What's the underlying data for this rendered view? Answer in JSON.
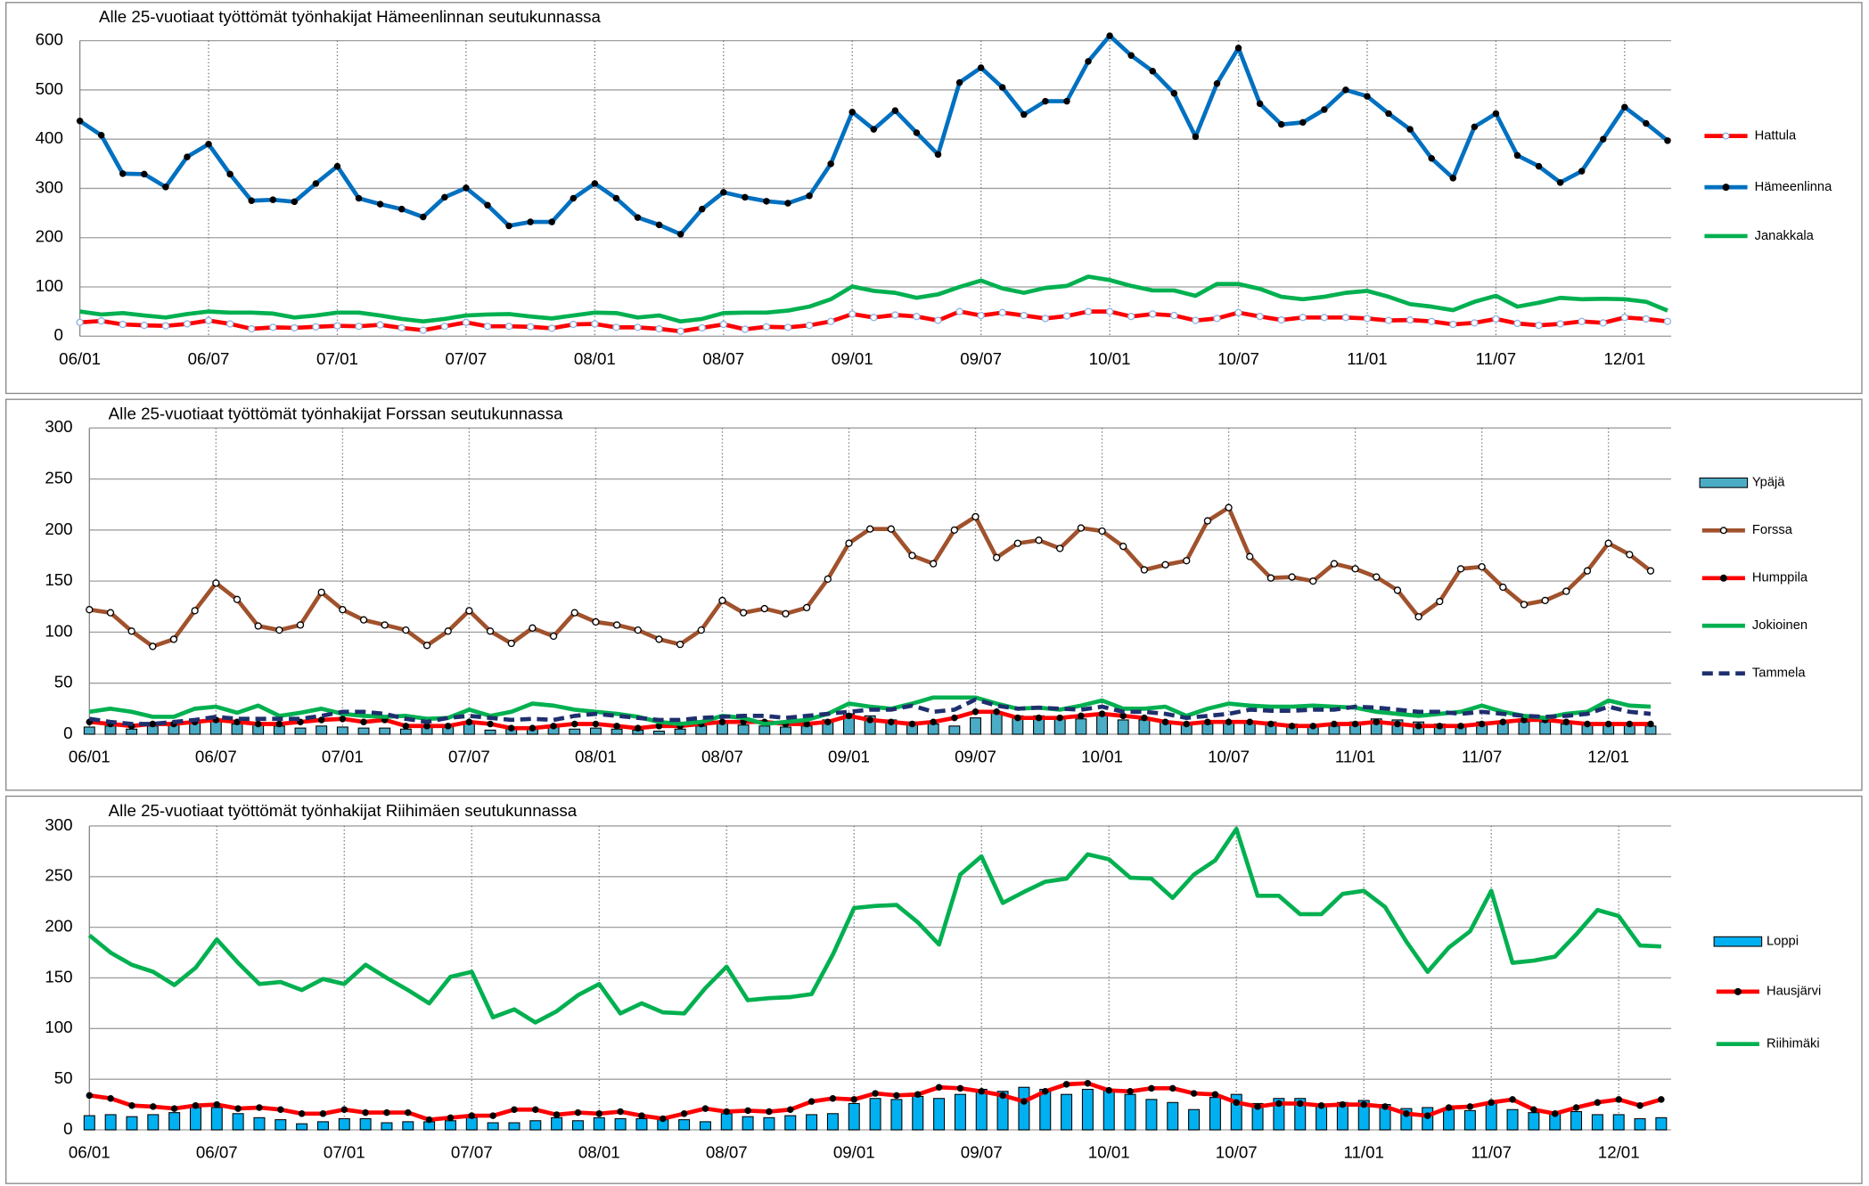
{
  "chart_data": [
    {
      "type": "line",
      "title": "Alle 25-vuotiaat työttömät työnhakijat Hämeenlinnan seutukunnassa",
      "categories": [
        "06/01",
        null,
        null,
        null,
        null,
        null,
        "06/07",
        null,
        null,
        null,
        null,
        null,
        "07/01",
        null,
        null,
        null,
        null,
        null,
        "07/07",
        null,
        null,
        null,
        null,
        null,
        "08/01",
        null,
        null,
        null,
        null,
        null,
        "08/07",
        null,
        null,
        null,
        null,
        null,
        "09/01",
        null,
        null,
        null,
        null,
        null,
        "09/07",
        null,
        null,
        null,
        null,
        null,
        "10/01",
        null,
        null,
        null,
        null,
        null,
        "10/07",
        null,
        null,
        null,
        null,
        null,
        "11/01",
        null,
        null,
        null,
        null,
        null,
        "11/07",
        null,
        null,
        null,
        null,
        null,
        "12/01",
        null,
        null
      ],
      "ylim": [
        0,
        600
      ],
      "yticks": [
        0,
        100,
        200,
        300,
        400,
        500,
        600
      ],
      "grid": true,
      "series": [
        {
          "name": "Hattula",
          "color": "#ff0000",
          "marker": "hollow",
          "marker_color": "#8eb4e3",
          "mark": "line",
          "values": [
            28,
            31,
            24,
            22,
            21,
            25,
            32,
            25,
            15,
            18,
            17,
            19,
            21,
            20,
            23,
            17,
            12,
            20,
            28,
            20,
            20,
            19,
            16,
            24,
            25,
            18,
            18,
            15,
            10,
            17,
            24,
            14,
            19,
            18,
            22,
            30,
            45,
            38,
            43,
            40,
            32,
            50,
            42,
            48,
            42,
            36,
            41,
            50,
            50,
            40,
            45,
            42,
            32,
            36,
            48,
            40,
            33,
            38,
            38,
            38,
            36,
            32,
            33,
            30,
            24,
            27,
            35,
            26,
            22,
            25,
            30,
            27,
            38,
            35,
            30
          ]
        },
        {
          "name": "Hämeenlinna",
          "color": "#0070c0",
          "marker": "dot",
          "marker_color": "#000000",
          "mark": "line",
          "values": [
            437,
            408,
            330,
            329,
            303,
            364,
            390,
            329,
            275,
            277,
            273,
            310,
            345,
            280,
            268,
            258,
            242,
            282,
            301,
            266,
            224,
            232,
            232,
            280,
            310,
            280,
            241,
            226,
            207,
            258,
            292,
            282,
            274,
            270,
            285,
            350,
            455,
            420,
            458,
            413,
            369,
            515,
            545,
            505,
            450,
            477,
            477,
            558,
            610,
            570,
            538,
            493,
            405,
            513,
            585,
            472,
            430,
            434,
            460,
            500,
            487,
            452,
            420,
            361,
            321,
            425,
            452,
            367,
            345,
            312,
            335,
            400,
            465,
            432,
            397
          ]
        },
        {
          "name": "Janakkala",
          "color": "#00b050",
          "mark": "line",
          "values": [
            50,
            44,
            47,
            42,
            38,
            45,
            50,
            48,
            48,
            46,
            38,
            42,
            48,
            48,
            42,
            35,
            30,
            35,
            42,
            44,
            45,
            40,
            36,
            42,
            48,
            47,
            38,
            42,
            30,
            35,
            47,
            48,
            48,
            52,
            60,
            75,
            101,
            92,
            88,
            78,
            85,
            100,
            113,
            97,
            88,
            98,
            102,
            121,
            114,
            102,
            93,
            93,
            82,
            106,
            106,
            96,
            80,
            75,
            80,
            88,
            92,
            80,
            65,
            60,
            53,
            70,
            82,
            60,
            68,
            78,
            75,
            76,
            75,
            70,
            52
          ]
        }
      ]
    },
    {
      "type": "line",
      "title": "Alle 25-vuotiaat työttömät työnhakijat Forssan seutukunnassa",
      "categories": [
        "06/01",
        null,
        null,
        null,
        null,
        null,
        "06/07",
        null,
        null,
        null,
        null,
        null,
        "07/01",
        null,
        null,
        null,
        null,
        null,
        "07/07",
        null,
        null,
        null,
        null,
        null,
        "08/01",
        null,
        null,
        null,
        null,
        null,
        "08/07",
        null,
        null,
        null,
        null,
        null,
        "09/01",
        null,
        null,
        null,
        null,
        null,
        "09/07",
        null,
        null,
        null,
        null,
        null,
        "10/01",
        null,
        null,
        null,
        null,
        null,
        "10/07",
        null,
        null,
        null,
        null,
        null,
        "11/01",
        null,
        null,
        null,
        null,
        null,
        "11/07",
        null,
        null,
        null,
        null,
        null,
        "12/01",
        null,
        null
      ],
      "ylim": [
        0,
        300
      ],
      "yticks": [
        0,
        50,
        100,
        150,
        200,
        250,
        300
      ],
      "grid": true,
      "series": [
        {
          "name": "Ypäjä",
          "color": "#4bacc6",
          "mark": "bar",
          "values": [
            7,
            8,
            5,
            8,
            10,
            12,
            14,
            10,
            10,
            8,
            6,
            8,
            7,
            6,
            6,
            5,
            7,
            8,
            10,
            4,
            5,
            6,
            7,
            5,
            6,
            5,
            4,
            3,
            5,
            8,
            12,
            9,
            8,
            7,
            8,
            14,
            20,
            18,
            14,
            12,
            10,
            8,
            16,
            22,
            18,
            18,
            16,
            15,
            20,
            14,
            14,
            12,
            10,
            10,
            12,
            12,
            12,
            10,
            8,
            8,
            12,
            15,
            14,
            12,
            10,
            8,
            12,
            13,
            12,
            12,
            10,
            9,
            10,
            10,
            8
          ]
        },
        {
          "name": "Forssa",
          "color": "#a0522d",
          "marker": "hollow",
          "marker_color": "#000000",
          "mark": "line",
          "values": [
            122,
            119,
            101,
            86,
            93,
            121,
            148,
            132,
            106,
            102,
            107,
            139,
            122,
            112,
            107,
            102,
            87,
            101,
            121,
            101,
            89,
            104,
            96,
            119,
            110,
            107,
            102,
            93,
            88,
            102,
            131,
            119,
            123,
            118,
            124,
            152,
            187,
            201,
            201,
            175,
            167,
            200,
            213,
            173,
            187,
            190,
            182,
            202,
            199,
            184,
            161,
            166,
            170,
            209,
            222,
            174,
            153,
            154,
            150,
            167,
            162,
            154,
            141,
            115,
            130,
            162,
            164,
            144,
            127,
            131,
            140,
            160,
            187,
            176,
            160
          ]
        },
        {
          "name": "Humppila",
          "color": "#ff0000",
          "marker": "dot",
          "marker_color": "#000000",
          "mark": "line",
          "values": [
            12,
            10,
            8,
            10,
            10,
            12,
            14,
            12,
            10,
            10,
            12,
            14,
            15,
            12,
            14,
            8,
            8,
            8,
            12,
            10,
            6,
            6,
            8,
            10,
            10,
            8,
            6,
            8,
            8,
            10,
            12,
            12,
            12,
            10,
            10,
            12,
            18,
            14,
            12,
            10,
            12,
            16,
            22,
            22,
            16,
            16,
            16,
            18,
            20,
            18,
            16,
            12,
            10,
            12,
            12,
            12,
            10,
            8,
            8,
            10,
            10,
            12,
            10,
            8,
            8,
            8,
            10,
            12,
            14,
            14,
            12,
            10,
            10,
            10,
            10
          ]
        },
        {
          "name": "Jokioinen",
          "color": "#00b050",
          "mark": "line",
          "values": [
            22,
            25,
            22,
            17,
            17,
            25,
            27,
            21,
            28,
            18,
            21,
            25,
            20,
            18,
            17,
            18,
            15,
            16,
            24,
            18,
            22,
            30,
            28,
            24,
            22,
            20,
            17,
            12,
            10,
            12,
            18,
            16,
            10,
            12,
            14,
            20,
            30,
            27,
            25,
            30,
            36,
            36,
            36,
            30,
            25,
            26,
            24,
            28,
            33,
            25,
            25,
            27,
            18,
            25,
            30,
            28,
            27,
            27,
            28,
            27,
            26,
            22,
            20,
            18,
            20,
            22,
            28,
            22,
            18,
            16,
            20,
            22,
            33,
            28,
            27
          ]
        },
        {
          "name": "Tammela",
          "color": "#1f2f6e",
          "dash": true,
          "mark": "line",
          "values": [
            15,
            12,
            10,
            10,
            12,
            14,
            17,
            15,
            15,
            15,
            15,
            18,
            22,
            22,
            20,
            15,
            12,
            16,
            18,
            16,
            14,
            15,
            14,
            18,
            20,
            18,
            16,
            14,
            14,
            16,
            17,
            18,
            18,
            16,
            18,
            20,
            22,
            24,
            24,
            28,
            22,
            24,
            34,
            28,
            25,
            26,
            25,
            24,
            27,
            22,
            22,
            20,
            16,
            18,
            20,
            24,
            23,
            23,
            24,
            24,
            27,
            26,
            24,
            22,
            22,
            20,
            22,
            20,
            18,
            17,
            18,
            20,
            27,
            22,
            20
          ]
        }
      ]
    },
    {
      "type": "line",
      "title": "Alle 25-vuotiaat työttömät työnhakijat Riihimäen seutukunnassa",
      "categories": [
        "06/01",
        null,
        null,
        null,
        null,
        null,
        "06/07",
        null,
        null,
        null,
        null,
        null,
        "07/01",
        null,
        null,
        null,
        null,
        null,
        "07/07",
        null,
        null,
        null,
        null,
        null,
        "08/01",
        null,
        null,
        null,
        null,
        null,
        "08/07",
        null,
        null,
        null,
        null,
        null,
        "09/01",
        null,
        null,
        null,
        null,
        null,
        "09/07",
        null,
        null,
        null,
        null,
        null,
        "10/01",
        null,
        null,
        null,
        null,
        null,
        "10/07",
        null,
        null,
        null,
        null,
        null,
        "11/01",
        null,
        null,
        null,
        null,
        null,
        "11/07",
        null,
        null,
        null,
        null,
        null,
        "12/01",
        null,
        null
      ],
      "ylim": [
        0,
        300
      ],
      "yticks": [
        0,
        50,
        100,
        150,
        200,
        250,
        300
      ],
      "grid": true,
      "series": [
        {
          "name": "Loppi",
          "color": "#00b0f0",
          "mark": "bar",
          "values": [
            14,
            15,
            13,
            15,
            17,
            22,
            22,
            16,
            12,
            10,
            6,
            8,
            11,
            11,
            7,
            8,
            8,
            9,
            12,
            7,
            7,
            9,
            12,
            9,
            12,
            11,
            11,
            10,
            10,
            8,
            16,
            13,
            12,
            14,
            15,
            16,
            26,
            31,
            30,
            33,
            31,
            35,
            40,
            38,
            42,
            40,
            35,
            40,
            40,
            35,
            30,
            27,
            20,
            32,
            35,
            26,
            31,
            31,
            23,
            27,
            29,
            25,
            21,
            22,
            20,
            19,
            26,
            20,
            17,
            16,
            18,
            15,
            15,
            11,
            12
          ]
        },
        {
          "name": "Hausjärvi",
          "color": "#ff0000",
          "marker": "dot",
          "marker_color": "#000000",
          "mark": "line",
          "values": [
            34,
            31,
            24,
            23,
            21,
            24,
            25,
            21,
            22,
            20,
            16,
            16,
            20,
            17,
            17,
            17,
            10,
            12,
            14,
            14,
            20,
            20,
            15,
            17,
            16,
            18,
            14,
            11,
            16,
            21,
            18,
            19,
            18,
            20,
            28,
            31,
            30,
            36,
            34,
            35,
            42,
            41,
            38,
            34,
            28,
            38,
            45,
            46,
            39,
            38,
            41,
            41,
            36,
            35,
            27,
            23,
            26,
            26,
            24,
            25,
            25,
            23,
            16,
            14,
            22,
            23,
            27,
            30,
            20,
            16,
            22,
            27,
            30,
            24,
            30
          ]
        },
        {
          "name": "Riihimäki",
          "color": "#00b050",
          "mark": "line",
          "values": [
            192,
            175,
            163,
            156,
            143,
            160,
            188,
            165,
            144,
            146,
            138,
            149,
            144,
            163,
            150,
            138,
            125,
            151,
            156,
            111,
            119,
            106,
            117,
            133,
            144,
            115,
            125,
            116,
            115,
            140,
            161,
            128,
            130,
            131,
            134,
            173,
            219,
            221,
            222,
            205,
            183,
            252,
            270,
            224,
            235,
            245,
            248,
            272,
            267,
            249,
            248,
            229,
            252,
            266,
            297,
            231,
            231,
            213,
            213,
            233,
            236,
            220,
            186,
            156,
            180,
            196,
            236,
            165,
            167,
            171,
            193,
            217,
            211,
            182,
            181
          ]
        }
      ]
    }
  ]
}
